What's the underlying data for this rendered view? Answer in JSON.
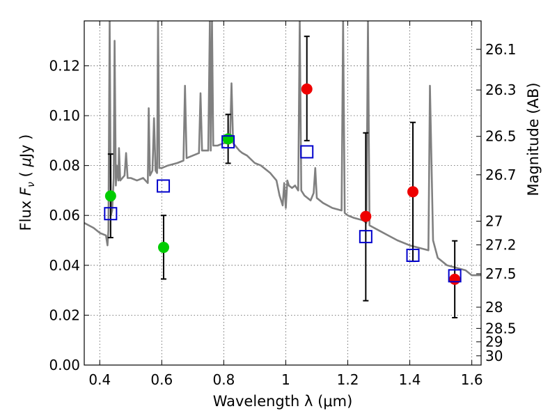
{
  "chart_data": {
    "type": "scatter",
    "xlabel": "Wavelength  λ (μm)",
    "ylabel": "Flux  F_ν  ( μJy )",
    "ylabel_parts": {
      "pre": "Flux ",
      "F": "F",
      "nu": "ν",
      "post": "  ( ",
      "mu": "μ",
      "unit": "Jy )"
    },
    "y2label": "Magnitude (AB)",
    "xlim": [
      0.35,
      1.63
    ],
    "ylim": [
      0.0,
      0.138
    ],
    "grid": true,
    "x_ticks": [
      {
        "value": 0.4,
        "label": "0.4"
      },
      {
        "value": 0.6,
        "label": "0.6"
      },
      {
        "value": 0.8,
        "label": "0.8"
      },
      {
        "value": 1.0,
        "label": "1"
      },
      {
        "value": 1.2,
        "label": "1.2"
      },
      {
        "value": 1.4,
        "label": "1.4"
      },
      {
        "value": 1.6,
        "label": "1.6"
      }
    ],
    "y_ticks": [
      {
        "value": 0.0,
        "label": "0.00"
      },
      {
        "value": 0.02,
        "label": "0.02"
      },
      {
        "value": 0.04,
        "label": "0.04"
      },
      {
        "value": 0.06,
        "label": "0.06"
      },
      {
        "value": 0.08,
        "label": "0.08"
      },
      {
        "value": 0.1,
        "label": "0.10"
      },
      {
        "value": 0.12,
        "label": "0.12"
      }
    ],
    "y2_ticks": [
      {
        "flux": 0.1266,
        "label": "26.1"
      },
      {
        "flux": 0.1103,
        "label": "26.3"
      },
      {
        "flux": 0.0917,
        "label": "26.5"
      },
      {
        "flux": 0.0763,
        "label": "26.7"
      },
      {
        "flux": 0.0577,
        "label": "27"
      },
      {
        "flux": 0.0482,
        "label": "27.2"
      },
      {
        "flux": 0.0366,
        "label": "27.5"
      },
      {
        "flux": 0.0232,
        "label": "28"
      },
      {
        "flux": 0.0147,
        "label": "28.5"
      },
      {
        "flux": 0.0093,
        "label": "29"
      },
      {
        "flux": 0.0037,
        "label": "30"
      }
    ],
    "model_spectrum": {
      "name": "",
      "color": "#808080",
      "points": [
        [
          0.35,
          0.057
        ],
        [
          0.38,
          0.055
        ],
        [
          0.4,
          0.053
        ],
        [
          0.42,
          0.052
        ],
        [
          0.425,
          0.048
        ],
        [
          0.428,
          0.054
        ],
        [
          0.432,
          0.138
        ],
        [
          0.436,
          0.06
        ],
        [
          0.44,
          0.062
        ],
        [
          0.445,
          0.075
        ],
        [
          0.448,
          0.13
        ],
        [
          0.452,
          0.072
        ],
        [
          0.455,
          0.08
        ],
        [
          0.46,
          0.074
        ],
        [
          0.462,
          0.087
        ],
        [
          0.466,
          0.074
        ],
        [
          0.48,
          0.076
        ],
        [
          0.485,
          0.085
        ],
        [
          0.49,
          0.075
        ],
        [
          0.5,
          0.075
        ],
        [
          0.52,
          0.074
        ],
        [
          0.54,
          0.075
        ],
        [
          0.555,
          0.073
        ],
        [
          0.558,
          0.103
        ],
        [
          0.562,
          0.076
        ],
        [
          0.57,
          0.078
        ],
        [
          0.575,
          0.099
        ],
        [
          0.58,
          0.078
        ],
        [
          0.585,
          0.077
        ],
        [
          0.588,
          0.138
        ],
        [
          0.592,
          0.079
        ],
        [
          0.6,
          0.079
        ],
        [
          0.62,
          0.08
        ],
        [
          0.65,
          0.081
        ],
        [
          0.67,
          0.082
        ],
        [
          0.675,
          0.112
        ],
        [
          0.68,
          0.083
        ],
        [
          0.7,
          0.084
        ],
        [
          0.72,
          0.085
        ],
        [
          0.725,
          0.109
        ],
        [
          0.73,
          0.086
        ],
        [
          0.75,
          0.086
        ],
        [
          0.755,
          0.138
        ],
        [
          0.758,
          0.086
        ],
        [
          0.762,
          0.138
        ],
        [
          0.766,
          0.088
        ],
        [
          0.78,
          0.088
        ],
        [
          0.8,
          0.089
        ],
        [
          0.82,
          0.089
        ],
        [
          0.825,
          0.113
        ],
        [
          0.83,
          0.089
        ],
        [
          0.85,
          0.086
        ],
        [
          0.86,
          0.085
        ],
        [
          0.875,
          0.084
        ],
        [
          0.9,
          0.081
        ],
        [
          0.92,
          0.08
        ],
        [
          0.95,
          0.077
        ],
        [
          0.97,
          0.074
        ],
        [
          0.98,
          0.068
        ],
        [
          0.985,
          0.066
        ],
        [
          0.99,
          0.064
        ],
        [
          0.995,
          0.073
        ],
        [
          1.0,
          0.063
        ],
        [
          1.005,
          0.074
        ],
        [
          1.01,
          0.072
        ],
        [
          1.02,
          0.071
        ],
        [
          1.03,
          0.072
        ],
        [
          1.04,
          0.07
        ],
        [
          1.045,
          0.138
        ],
        [
          1.05,
          0.07
        ],
        [
          1.06,
          0.068
        ],
        [
          1.08,
          0.066
        ],
        [
          1.09,
          0.069
        ],
        [
          1.095,
          0.079
        ],
        [
          1.1,
          0.067
        ],
        [
          1.12,
          0.065
        ],
        [
          1.15,
          0.063
        ],
        [
          1.18,
          0.062
        ],
        [
          1.185,
          0.138
        ],
        [
          1.19,
          0.061
        ],
        [
          1.2,
          0.06
        ],
        [
          1.22,
          0.059
        ],
        [
          1.25,
          0.058
        ],
        [
          1.26,
          0.057
        ],
        [
          1.265,
          0.138
        ],
        [
          1.27,
          0.056
        ],
        [
          1.3,
          0.054
        ],
        [
          1.33,
          0.052
        ],
        [
          1.36,
          0.05
        ],
        [
          1.4,
          0.048
        ],
        [
          1.43,
          0.047
        ],
        [
          1.46,
          0.046
        ],
        [
          1.465,
          0.112
        ],
        [
          1.475,
          0.05
        ],
        [
          1.49,
          0.043
        ],
        [
          1.52,
          0.04
        ],
        [
          1.55,
          0.039
        ],
        [
          1.58,
          0.038
        ],
        [
          1.6,
          0.036
        ],
        [
          1.63,
          0.036
        ]
      ]
    },
    "series": [
      {
        "name": "",
        "marker": "circle",
        "color": "#00cc00",
        "points": [
          {
            "x": 0.435,
            "y": 0.0678,
            "yerr": [
              0.0511,
              0.0846
            ]
          },
          {
            "x": 0.606,
            "y": 0.0472,
            "yerr": [
              0.0345,
              0.06
            ]
          },
          {
            "x": 0.814,
            "y": 0.0907,
            "yerr": [
              0.0809,
              0.1005
            ]
          }
        ]
      },
      {
        "name": "",
        "marker": "circle",
        "color": "#ee0000",
        "points": [
          {
            "x": 1.068,
            "y": 0.1107,
            "yerr": [
              0.09,
              0.1318
            ]
          },
          {
            "x": 1.258,
            "y": 0.0596,
            "yerr": [
              0.0258,
              0.0931
            ]
          },
          {
            "x": 1.41,
            "y": 0.0695,
            "yerr": [
              0.0416,
              0.0973
            ]
          },
          {
            "x": 1.545,
            "y": 0.0344,
            "yerr": [
              0.019,
              0.0498
            ]
          }
        ]
      },
      {
        "name": "",
        "marker": "open-square",
        "color": "#0000cc",
        "points": [
          {
            "x": 0.435,
            "y": 0.0607
          },
          {
            "x": 0.605,
            "y": 0.0718
          },
          {
            "x": 0.814,
            "y": 0.0895
          },
          {
            "x": 1.068,
            "y": 0.0855
          },
          {
            "x": 1.258,
            "y": 0.0515
          },
          {
            "x": 1.41,
            "y": 0.044
          },
          {
            "x": 1.545,
            "y": 0.0358
          }
        ]
      }
    ]
  }
}
